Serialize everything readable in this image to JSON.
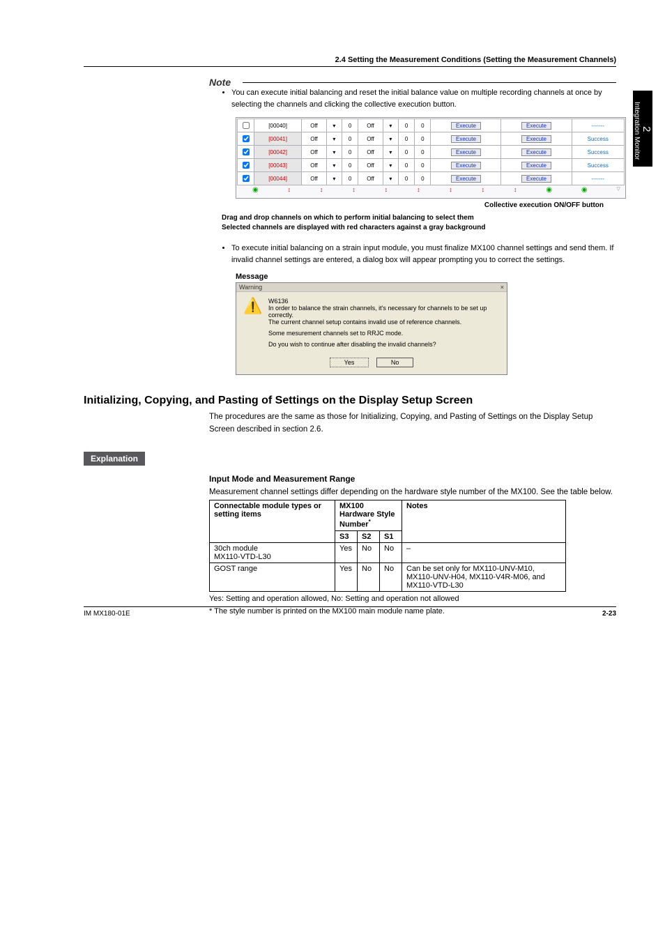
{
  "header": {
    "section": "2.4  Setting the Measurement Conditions (Setting the Measurement Channels)"
  },
  "sideTab": {
    "chapter": "2",
    "label": "Integration Monitor"
  },
  "note": {
    "title": "Note",
    "bullet1": "You can execute initial balancing and reset the initial balance value on multiple recording channels at once by selecting the channels and clicking the collective execution button.",
    "bullet2": "To execute initial balancing on a strain input module, you must finalize MX100 channel settings and send them. If invalid channel settings are entered, a dialog box will appear prompting you to correct the settings."
  },
  "channelRows": [
    {
      "ch": "[00040]",
      "off": "Off",
      "val1": "0",
      "st": "Off",
      "v": "0",
      "v2": "0",
      "exec1": "Execute",
      "exec2": "Execute",
      "res": "-------",
      "red": false,
      "disabled": true
    },
    {
      "ch": "[00041]",
      "off": "Off",
      "val1": "0",
      "st": "Off",
      "v": "0",
      "v2": "0",
      "exec1": "Execute",
      "exec2": "Execute",
      "res": "Success",
      "red": true
    },
    {
      "ch": "[00042]",
      "off": "Off",
      "val1": "0",
      "st": "Off",
      "v": "0",
      "v2": "0",
      "exec1": "Execute",
      "exec2": "Execute",
      "res": "Success",
      "red": true
    },
    {
      "ch": "[00043]",
      "off": "Off",
      "val1": "0",
      "st": "Off",
      "v": "0",
      "v2": "0",
      "exec1": "Execute",
      "exec2": "Execute",
      "res": "Success",
      "red": true
    },
    {
      "ch": "[00044]",
      "off": "Off",
      "val1": "0",
      "st": "Off",
      "v": "0",
      "v2": "0",
      "exec1": "Execute",
      "exec2": "Execute",
      "res": "-------",
      "red": true
    }
  ],
  "collectiveLabel": "Collective execution ON/OFF button",
  "captionBold": {
    "line1": "Drag and drop channels on which to perform initial balancing to select them",
    "line2": "Selected channels are displayed with red characters against a gray background"
  },
  "messageHeading": "Message",
  "dialog": {
    "title": "Warning",
    "close": "×",
    "code": "W6136",
    "line1": "In order to balance the strain channels, it's necessary for channels to be set up correctly.",
    "line2": "The current channel setup contains invalid use of reference channels.",
    "line3": "Some mesurement channels set to RRJC mode.",
    "line4": "Do you wish to continue after disabling the invalid channels?",
    "yes": "Yes",
    "no": "No"
  },
  "h2": "Initializing, Copying, and Pasting of Settings on the Display Setup Screen",
  "paraInit": "The procedures are the same as those for Initializing, Copying, and Pasting of Settings on the Display Setup Screen described in section 2.6.",
  "explanationTag": "Explanation",
  "h3": "Input Mode and Measurement Range",
  "paraInput": "Measurement channel settings differ depending on the hardware style number of the MX100. See the table below.",
  "table": {
    "headCol1": "Connectable module types or setting items",
    "headCol2": "MX100 Hardware Style Number",
    "headCol3": "Notes",
    "sub": {
      "s3": "S3",
      "s2": "S2",
      "s1": "S1"
    },
    "rows": [
      {
        "c1a": "30ch module",
        "c1b": "MX110-VTD-L30",
        "s3": "Yes",
        "s2": "No",
        "s1": "No",
        "notes": "–"
      },
      {
        "c1a": "GOST range",
        "c1b": "",
        "s3": "Yes",
        "s2": "No",
        "s1": "No",
        "notes": "Can be set only for MX110-UNV-M10, MX110-UNV-H04, MX110-V4R-M06, and MX110-VTD-L30"
      }
    ]
  },
  "footnotes": {
    "f1": "Yes: Setting and operation allowed, No: Setting and operation not allowed",
    "f2": "*  The style number is printed on the MX100 main module name plate."
  },
  "footer": {
    "doc": "IM MX180-01E",
    "page": "2-23"
  }
}
